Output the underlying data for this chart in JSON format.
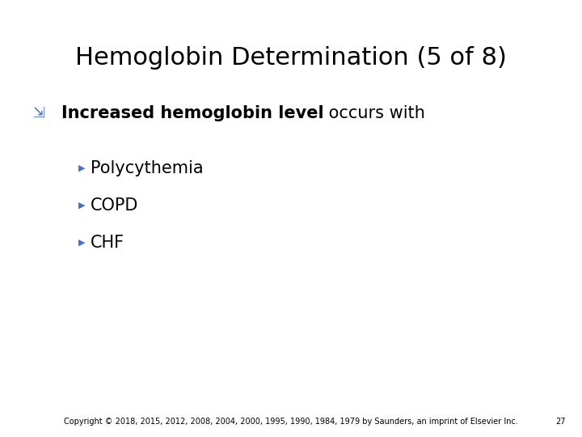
{
  "title": "Hemoglobin Determination (5 of 8)",
  "background_color": "#ffffff",
  "title_color": "#000000",
  "title_fontsize": 22,
  "bullet1_text_bold": "Increased hemoglobin level",
  "bullet1_text_normal": " occurs with",
  "bullet1_fontsize": 15,
  "sub_bullets": [
    "Polycythemia",
    "COPD",
    "CHF"
  ],
  "sub_bullet_fontsize": 15,
  "arrow_color": "#4472c4",
  "copyright_text": "Copyright © 2018, 2015, 2012, 2008, 2004, 2000, 1995, 1990, 1984, 1979 by Saunders, an imprint of Elsevier Inc.",
  "page_number": "27",
  "footer_fontsize": 7,
  "footer_color": "#000000"
}
